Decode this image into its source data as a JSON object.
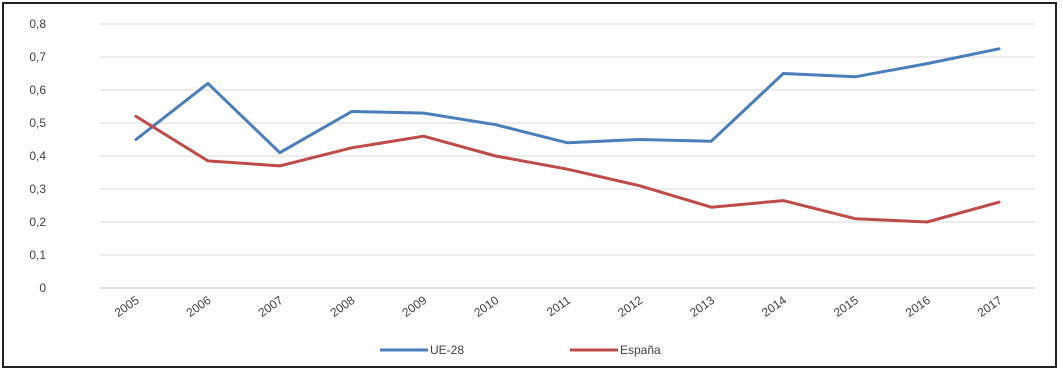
{
  "chart_data": {
    "type": "line",
    "title": "",
    "xlabel": "",
    "ylabel": "",
    "x": [
      "2005",
      "2006",
      "2007",
      "2008",
      "2009",
      "2010",
      "2011",
      "2012",
      "2013",
      "2014",
      "2015",
      "2016",
      "2017"
    ],
    "y_ticks": [
      "0",
      "0,1",
      "0,2",
      "0,3",
      "0,4",
      "0,5",
      "0,6",
      "0,7",
      "0,8"
    ],
    "ylim": [
      0,
      0.8
    ],
    "grid": true,
    "legend_position": "bottom",
    "series": [
      {
        "name": "UE-28",
        "color": "#4a7ebb",
        "values": [
          0.45,
          0.62,
          0.41,
          0.535,
          0.53,
          0.495,
          0.44,
          0.45,
          0.445,
          0.65,
          0.64,
          0.68,
          0.725
        ]
      },
      {
        "name": "España",
        "color": "#be4b48",
        "values": [
          0.52,
          0.385,
          0.37,
          0.425,
          0.46,
          0.4,
          0.36,
          0.31,
          0.245,
          0.265,
          0.21,
          0.2,
          0.26
        ]
      }
    ]
  }
}
